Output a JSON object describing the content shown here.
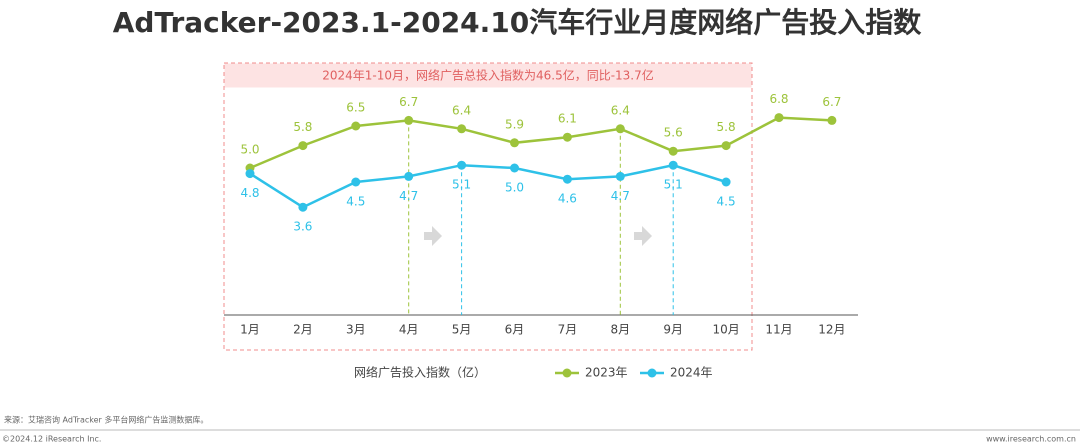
{
  "chart_data": {
    "type": "line",
    "title": "AdTracker-2023.1-2024.10汽车行业月度网络广告投入指数",
    "annotation": "2024年1-10月，网络广告总投入指数为46.5亿，同比-13.7亿",
    "axis_label": "网络广告投入指数（亿）",
    "categories": [
      "1月",
      "2月",
      "3月",
      "4月",
      "5月",
      "6月",
      "7月",
      "8月",
      "9月",
      "10月",
      "11月",
      "12月"
    ],
    "series": [
      {
        "name": "2023年",
        "color": "#9dc33b",
        "values": [
          5.0,
          5.8,
          6.5,
          6.7,
          6.4,
          5.9,
          6.1,
          6.4,
          5.6,
          5.8,
          6.8,
          6.7
        ],
        "value_labels": [
          "5.0",
          "5.8",
          "6.5",
          "6.7",
          "6.4",
          "5.9",
          "6.1",
          "6.4",
          "5.6",
          "5.8",
          "6.8",
          "6.7"
        ]
      },
      {
        "name": "2024年",
        "color": "#2ec1e8",
        "values": [
          4.8,
          3.6,
          4.5,
          4.7,
          5.1,
          5.0,
          4.6,
          4.7,
          5.1,
          4.5,
          null,
          null
        ],
        "value_labels": [
          "4.8",
          "3.6",
          "4.5",
          "4.7",
          "5.1",
          "5.0",
          "4.6",
          "4.7",
          "5.1",
          "4.5",
          null,
          null
        ]
      }
    ],
    "source": "来源：艾瑞咨询 AdTracker 多平台网络广告监测数据库。",
    "copyright": "©2024.12 iResearch Inc.",
    "website": "www.iresearch.com.cn"
  }
}
